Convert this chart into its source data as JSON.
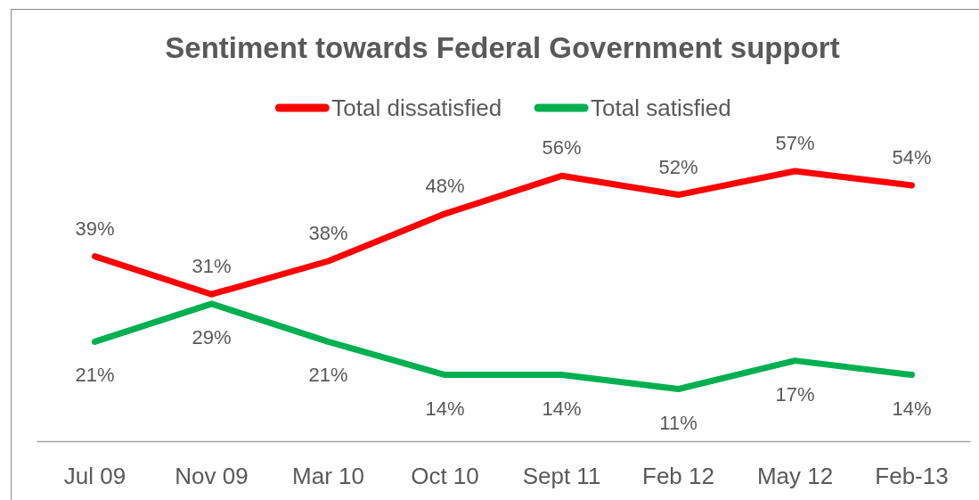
{
  "chart_data": {
    "type": "line",
    "title": "Sentiment towards Federal Government support",
    "categories": [
      "Jul 09",
      "Nov 09",
      "Mar 10",
      "Oct 10",
      "Sept 11",
      "Feb 12",
      "May 12",
      "Feb-13"
    ],
    "series": [
      {
        "name": "Total dissatisfied",
        "color": "#ff0000",
        "values": [
          39,
          31,
          38,
          48,
          56,
          52,
          57,
          54
        ],
        "value_labels": [
          "39%",
          "31%",
          "38%",
          "48%",
          "56%",
          "52%",
          "57%",
          "54%"
        ]
      },
      {
        "name": "Total satisfied",
        "color": "#00b050",
        "values": [
          21,
          29,
          21,
          14,
          14,
          11,
          17,
          14
        ],
        "value_labels": [
          "21%",
          "29%",
          "21%",
          "14%",
          "14%",
          "11%",
          "17%",
          "14%"
        ]
      }
    ],
    "tick_labels": "x",
    "legend": "top",
    "marker": "none",
    "line_style": "solid"
  }
}
